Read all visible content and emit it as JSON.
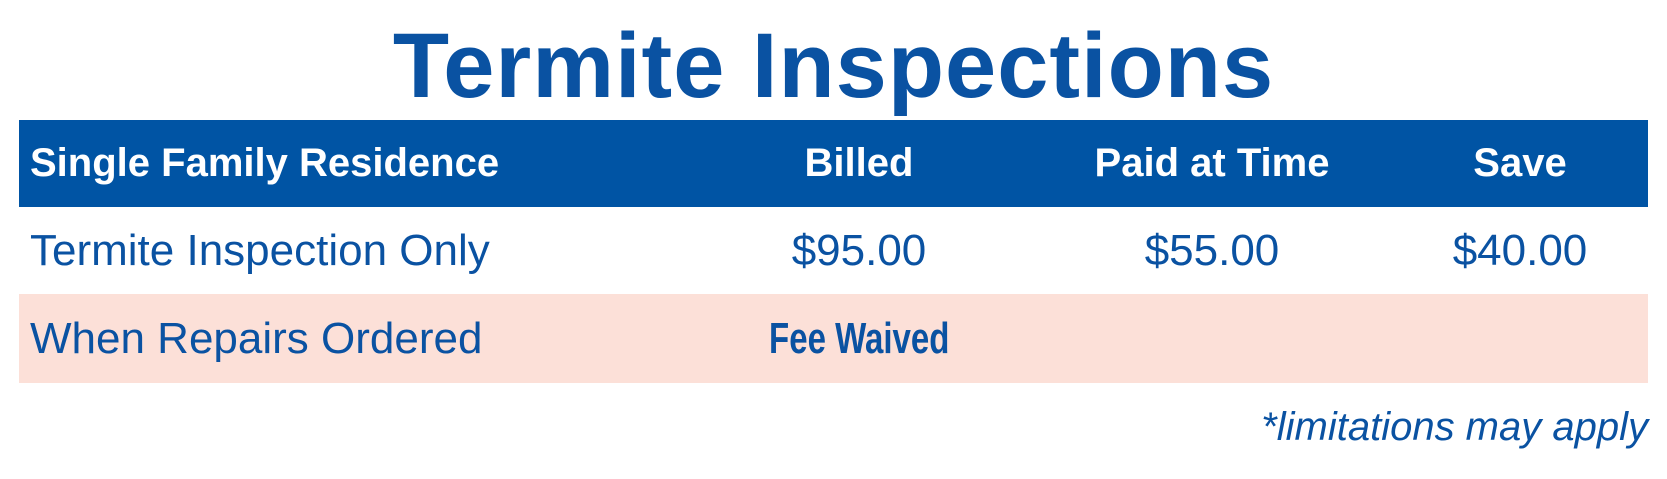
{
  "title": "Termite Inspections",
  "table": {
    "headers": [
      "Single Family Residence",
      "Billed",
      "Paid at Time",
      "Save"
    ],
    "rows": [
      [
        "Termite Inspection Only",
        "$95.00",
        "$55.00",
        "$40.00"
      ],
      [
        "When Repairs Ordered",
        "Fee Waived",
        "",
        ""
      ]
    ]
  },
  "footnote": "*limitations may apply",
  "colors": {
    "brand_blue": "#0054a4",
    "highlight_row": "#fce0d8"
  }
}
